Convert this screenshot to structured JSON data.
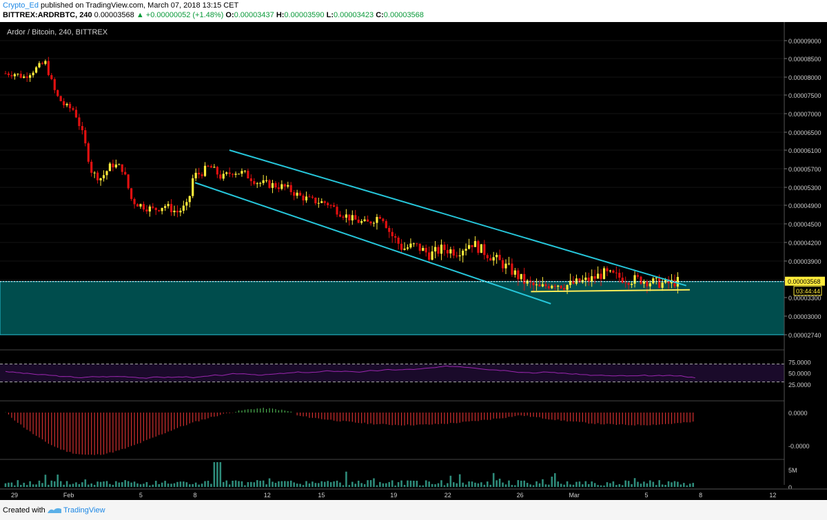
{
  "header": {
    "author": "Crypto_Ed",
    "published": "published on TradingView.com, March 07, 2018 13:15 CET",
    "symbol": "BITTREX:ARDRBTC, 240",
    "last": "0.00003568",
    "change": "+0.00000052 (+1.48%)",
    "o_label": "O:",
    "o": "0.00003437",
    "h_label": "H:",
    "h": "0.00003590",
    "l_label": "L:",
    "l": "0.00003423",
    "c_label": "C:",
    "c": "0.00003568"
  },
  "footer": {
    "created": "Created with",
    "brand": "TradingView"
  },
  "colors": {
    "up": "#ffeb3b",
    "down": "#e01010",
    "channel": "#26c6da",
    "zone": "#004d4d",
    "rsi": "#9c27b0",
    "rsi_bg": "#1a0a2a",
    "hist_neg": "#d32f2f",
    "hist_pos": "#4caf50",
    "volume": "#2e8b7a",
    "support": "#ffee58",
    "axis_text": "#d0d0d0"
  },
  "chart_data": [
    {
      "type": "line",
      "title": "Ardor / Bitcoin, 240, BITTREX",
      "xlabel": "",
      "ylabel": "",
      "x_ticks": [
        {
          "d": 0,
          "label": "29"
        },
        {
          "d": 3,
          "label": "Feb"
        },
        {
          "d": 7,
          "label": "5"
        },
        {
          "d": 10,
          "label": "8"
        },
        {
          "d": 14,
          "label": "12"
        },
        {
          "d": 17,
          "label": "15"
        },
        {
          "d": 21,
          "label": "19"
        },
        {
          "d": 24,
          "label": "22"
        },
        {
          "d": 28,
          "label": "26"
        },
        {
          "d": 31,
          "label": "Mar"
        },
        {
          "d": 35,
          "label": "5"
        },
        {
          "d": 38,
          "label": "8"
        },
        {
          "d": 42,
          "label": "12"
        }
      ],
      "y_ticks": [
        "0.00009000",
        "0.00008500",
        "0.00008000",
        "0.00007500",
        "0.00007000",
        "0.00006500",
        "0.00006100",
        "0.00005700",
        "0.00005300",
        "0.00004900",
        "0.00004500",
        "0.00004200",
        "0.00003900",
        "0.00003600",
        "0.00003300",
        "0.00003000",
        "0.00002740"
      ],
      "last_price_label": "0.00003568",
      "countdown": "03:44:44",
      "price_path": [
        [
          0,
          8.1
        ],
        [
          0.5,
          8.1
        ],
        [
          1,
          8.0
        ],
        [
          1.6,
          8.2
        ],
        [
          2.2,
          8.4
        ],
        [
          2.8,
          7.5
        ],
        [
          3.3,
          7.2
        ],
        [
          3.8,
          7.1
        ],
        [
          4.3,
          6.4
        ],
        [
          4.8,
          5.6
        ],
        [
          5.3,
          5.5
        ],
        [
          5.9,
          5.8
        ],
        [
          6.5,
          5.7
        ],
        [
          7.0,
          5.0
        ],
        [
          7.5,
          4.9
        ],
        [
          8.2,
          4.8
        ],
        [
          8.8,
          4.9
        ],
        [
          9.5,
          4.75
        ],
        [
          10.1,
          4.9
        ],
        [
          10.4,
          5.55
        ],
        [
          10.8,
          5.6
        ],
        [
          11.3,
          5.75
        ],
        [
          12.0,
          5.5
        ],
        [
          12.6,
          5.65
        ],
        [
          13.2,
          5.6
        ],
        [
          14.0,
          5.4
        ],
        [
          14.8,
          5.35
        ],
        [
          15.5,
          5.3
        ],
        [
          16.3,
          5.1
        ],
        [
          17.0,
          5.0
        ],
        [
          17.8,
          4.95
        ],
        [
          18.5,
          4.75
        ],
        [
          19.2,
          4.6
        ],
        [
          20.0,
          4.5
        ],
        [
          20.8,
          4.7
        ],
        [
          21.3,
          4.35
        ],
        [
          22.0,
          4.1
        ],
        [
          22.7,
          4.15
        ],
        [
          23.5,
          4.0
        ],
        [
          24.2,
          4.1
        ],
        [
          25.0,
          4.05
        ],
        [
          25.8,
          4.2
        ],
        [
          26.5,
          4.05
        ],
        [
          27.3,
          3.9
        ],
        [
          28.0,
          3.75
        ],
        [
          28.8,
          3.55
        ],
        [
          29.6,
          3.45
        ],
        [
          30.3,
          3.55
        ],
        [
          31.0,
          3.5
        ],
        [
          31.7,
          3.55
        ],
        [
          32.4,
          3.6
        ],
        [
          33.1,
          3.7
        ],
        [
          33.8,
          3.65
        ],
        [
          34.5,
          3.6
        ],
        [
          35.2,
          3.6
        ],
        [
          35.9,
          3.55
        ],
        [
          36.6,
          3.53
        ],
        [
          37.3,
          3.57
        ]
      ],
      "channel_upper": [
        [
          12.4,
          6.1
        ],
        [
          37.7,
          3.5
        ]
      ],
      "channel_lower": [
        [
          10.5,
          5.4
        ],
        [
          30.2,
          3.2
        ]
      ],
      "support_line": [
        [
          29.1,
          3.4
        ],
        [
          37.9,
          3.43
        ]
      ],
      "zone": [
        2.74,
        3.568
      ]
    },
    {
      "type": "line",
      "title": "",
      "y_ticks": [
        "75.0000",
        "50.0000",
        "25.0000"
      ],
      "ylim": [
        0,
        100
      ],
      "bands": [
        30,
        70
      ]
    },
    {
      "type": "bar",
      "title": "",
      "y_ticks": [
        "0.0000",
        "-0.0000"
      ]
    },
    {
      "type": "bar",
      "title": "",
      "y_ticks": [
        "5M",
        "0"
      ]
    }
  ]
}
